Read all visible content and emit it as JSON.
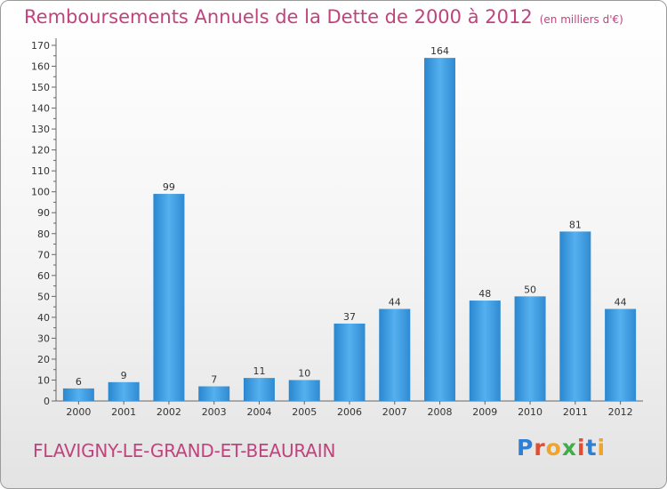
{
  "header": {
    "title": "Remboursements Annuels de la Dette de 2000 à 2012",
    "subtitle": "(en milliers d'€)"
  },
  "footer": {
    "commune": "FLAVIGNY-LE-GRAND-ET-BEAURAIN",
    "logo": "Proxiti"
  },
  "colors": {
    "title": "#c0437e",
    "bar": "#3d9ee0",
    "logo": [
      "#2e7fd6",
      "#e24c31",
      "#f0a52a",
      "#3fae49",
      "#e24c31",
      "#2e7fd6",
      "#f0a52a"
    ]
  },
  "chart_data": {
    "type": "bar",
    "title": "Remboursements Annuels de la Dette de 2000 à 2012",
    "subtitle": "(en milliers d'€)",
    "categories": [
      "2000",
      "2001",
      "2002",
      "2003",
      "2004",
      "2005",
      "2006",
      "2007",
      "2008",
      "2009",
      "2010",
      "2011",
      "2012"
    ],
    "values": [
      6,
      9,
      99,
      7,
      11,
      10,
      37,
      44,
      164,
      48,
      50,
      81,
      44
    ],
    "ylim": [
      0,
      170
    ],
    "yticks": [
      0,
      10,
      20,
      30,
      40,
      50,
      60,
      70,
      80,
      90,
      100,
      110,
      120,
      130,
      140,
      150,
      160,
      170
    ],
    "data_labels": true,
    "grid": false,
    "legend": "none"
  }
}
